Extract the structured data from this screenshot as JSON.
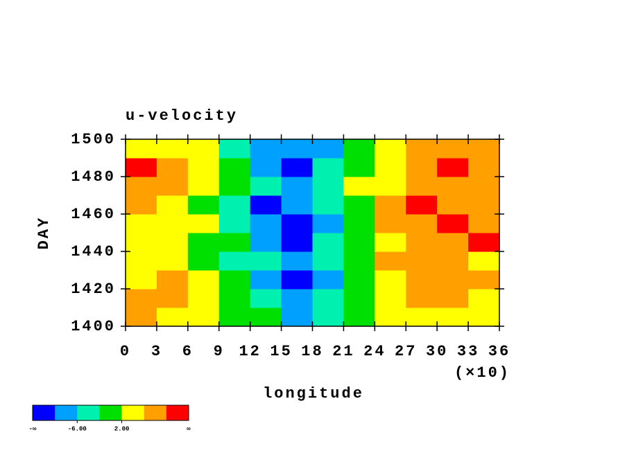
{
  "chart_data": {
    "type": "heatmap",
    "title": "u-velocity",
    "xlabel": "longitude",
    "ylabel": "DAY",
    "x_multiplier": "(×10)",
    "xlim": [
      0,
      36
    ],
    "ylim": [
      1400,
      1500
    ],
    "xticks": [
      0,
      3,
      6,
      9,
      12,
      15,
      18,
      21,
      24,
      27,
      30,
      33,
      36
    ],
    "yticks": [
      1400,
      1420,
      1440,
      1460,
      1480,
      1500
    ],
    "x": [
      1.5,
      4.5,
      7.5,
      10.5,
      13.5,
      16.5,
      19.5,
      22.5,
      25.5,
      28.5,
      31.5,
      34.5
    ],
    "y": [
      1405,
      1415,
      1425,
      1435,
      1445,
      1455,
      1465,
      1475,
      1485,
      1495
    ],
    "z": [
      [
        7,
        5,
        3,
        1,
        -2,
        -8,
        -6,
        -2,
        3,
        5,
        4,
        5
      ],
      [
        9,
        6,
        3,
        -1,
        -4,
        -7,
        -4,
        0,
        4,
        7,
        8,
        5
      ],
      [
        5,
        8,
        4,
        -2,
        -8,
        -11,
        -7,
        -1,
        4,
        8,
        9,
        6
      ],
      [
        4,
        3,
        1,
        -3,
        -6,
        -8,
        -5,
        0,
        6,
        8,
        7,
        5
      ],
      [
        3,
        2,
        0,
        -2,
        -8,
        -11,
        -6,
        -1,
        5,
        9,
        8,
        10
      ],
      [
        4,
        5,
        2,
        -3,
        -9,
        -12,
        -7,
        0,
        6,
        9,
        11,
        8
      ],
      [
        6,
        4,
        1,
        -4,
        -11,
        -10,
        -5,
        1,
        7,
        11,
        9,
        8
      ],
      [
        8,
        6,
        2,
        -2,
        -6,
        -9,
        -4,
        2,
        5,
        7,
        8,
        9
      ],
      [
        11,
        8,
        3,
        -1,
        -7,
        -12,
        -6,
        1,
        4,
        8,
        10,
        9
      ],
      [
        5,
        4,
        2,
        -3,
        -8,
        -10,
        -9,
        -2,
        3,
        6,
        7,
        6
      ]
    ],
    "colorbar": {
      "colors": [
        "#0000ff",
        "#00a0ff",
        "#00f0b0",
        "#00e000",
        "#ffff00",
        "#ffa000",
        "#ff0000"
      ],
      "levels": [
        -10,
        -6,
        -2,
        2,
        6,
        10
      ],
      "end_labels": [
        "-∞",
        "∞"
      ],
      "ticks": [
        {
          "value": -6,
          "label": "-6.00"
        },
        {
          "value": 2,
          "label": "2.00"
        }
      ]
    }
  }
}
